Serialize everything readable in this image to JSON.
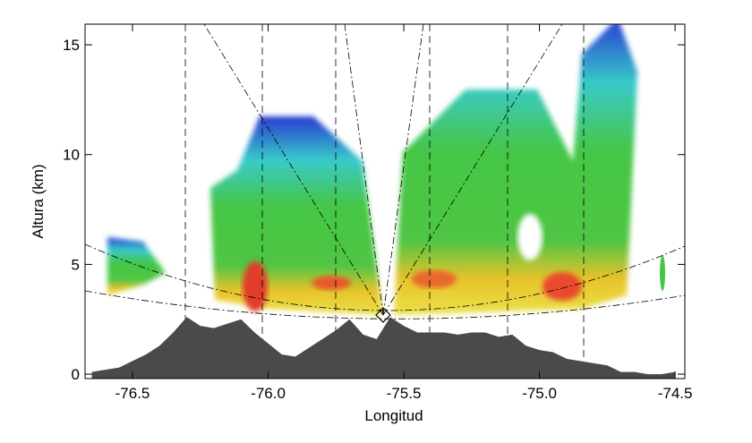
{
  "chart_data": {
    "type": "area",
    "x_label": "Longitud",
    "y_label": "Altura (km)",
    "x": [
      -76.65,
      -76.6,
      -76.55,
      -76.5,
      -76.45,
      -76.4,
      -76.35,
      -76.3,
      -76.25,
      -76.2,
      -76.15,
      -76.1,
      -76.05,
      -76.0,
      -75.95,
      -75.9,
      -75.85,
      -75.8,
      -75.75,
      -75.7,
      -75.65,
      -75.6,
      -75.55,
      -75.5,
      -75.45,
      -75.4,
      -75.35,
      -75.3,
      -75.25,
      -75.2,
      -75.15,
      -75.1,
      -75.05,
      -75.0,
      -74.95,
      -74.9,
      -74.85,
      -74.8,
      -74.75,
      -74.7,
      -74.65,
      -74.6,
      -74.55,
      -74.5
    ],
    "series": [
      {
        "color": "#4a4a4a",
        "values": [
          0.1,
          0.2,
          0.3,
          0.6,
          0.9,
          1.3,
          1.9,
          2.6,
          2.2,
          2.1,
          2.3,
          2.5,
          1.9,
          1.4,
          0.9,
          0.8,
          1.2,
          1.6,
          2.0,
          2.5,
          1.8,
          1.6,
          2.6,
          2.2,
          1.9,
          1.9,
          1.9,
          1.8,
          1.9,
          1.9,
          1.7,
          1.8,
          1.3,
          1.1,
          1.0,
          0.7,
          0.6,
          0.5,
          0.4,
          0.1,
          0.1,
          0.0,
          0.0,
          0.1
        ]
      }
    ],
    "xlim": [
      -76.675,
      -74.464
    ],
    "ylim": [
      -0.2,
      15.94
    ],
    "xticks": [
      -76.5,
      {
        "value": -76,
        "label": "-76.0"
      },
      -75.5,
      {
        "value": -75,
        "label": "-75.0"
      },
      -74.5
    ],
    "yticks": [
      0,
      5,
      10,
      15
    ]
  }
}
